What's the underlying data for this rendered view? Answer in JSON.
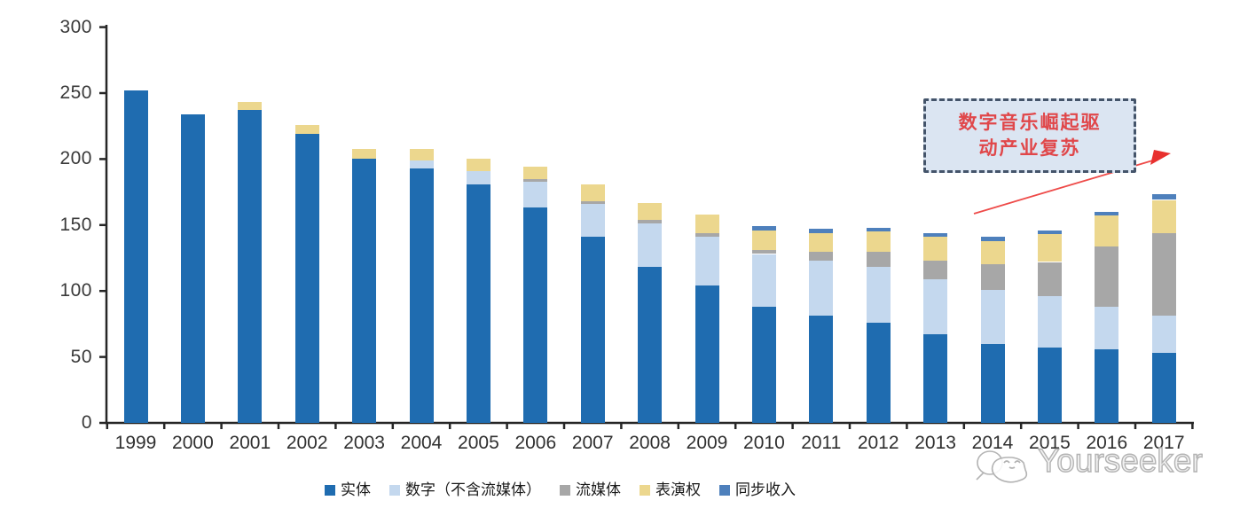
{
  "chart_data": {
    "type": "bar",
    "stacked": true,
    "title": "",
    "xlabel": "",
    "ylabel": "",
    "ylim": [
      0,
      300
    ],
    "y_ticks": [
      0,
      50,
      100,
      150,
      200,
      250,
      300
    ],
    "grid": false,
    "legend_position": "bottom",
    "categories": [
      "1999",
      "2000",
      "2001",
      "2002",
      "2003",
      "2004",
      "2005",
      "2006",
      "2007",
      "2008",
      "2009",
      "2010",
      "2011",
      "2012",
      "2013",
      "2014",
      "2015",
      "2016",
      "2017"
    ],
    "series": [
      {
        "key": "physical",
        "name": "实体",
        "color": "#1f6cb0",
        "values": [
          252,
          234,
          237,
          219,
          200,
          193,
          181,
          163,
          141,
          118,
          104,
          88,
          81,
          76,
          67,
          60,
          57,
          56,
          53
        ]
      },
      {
        "key": "digital-excl-streaming",
        "name": "数字（不含流媒体）",
        "color": "#c4d8ee",
        "values": [
          0,
          0,
          0,
          0,
          0,
          6,
          10,
          20,
          25,
          33,
          37,
          40,
          42,
          42,
          42,
          41,
          39,
          32,
          28
        ]
      },
      {
        "key": "streaming",
        "name": "流媒体",
        "color": "#a7a7a7",
        "values": [
          0,
          0,
          0,
          0,
          0,
          0,
          0,
          2,
          2,
          3,
          3,
          3,
          7,
          12,
          14,
          19,
          26,
          46,
          63
        ]
      },
      {
        "key": "performance-rights",
        "name": "表演权",
        "color": "#ecd78e",
        "values": [
          0,
          0,
          6,
          7,
          8,
          9,
          9,
          9,
          13,
          13,
          14,
          15,
          14,
          15,
          18,
          18,
          21,
          23,
          25
        ]
      },
      {
        "key": "sync",
        "name": "同步收入",
        "color": "#4e80bc",
        "values": [
          0,
          0,
          0,
          0,
          0,
          0,
          0,
          0,
          0,
          0,
          0,
          3,
          3,
          3,
          3,
          3,
          3,
          3,
          4
        ]
      }
    ]
  },
  "annotation": {
    "line1": "数字音乐崛起驱",
    "line2": "动产业复苏",
    "text_color": "#e0474a",
    "box_fill": "#dbe5f2",
    "border_color": "#44546a",
    "arrow_color": "#ee4a48"
  },
  "legend": {
    "items": [
      {
        "key": "physical",
        "label": "实体",
        "color": "#1f6cb0"
      },
      {
        "key": "digital-excl-streaming",
        "label": "数字（不含流媒体）",
        "color": "#c4d8ee"
      },
      {
        "key": "streaming",
        "label": "流媒体",
        "color": "#a7a7a7"
      },
      {
        "key": "performance-rights",
        "label": "表演权",
        "color": "#ecd78e"
      },
      {
        "key": "sync",
        "label": "同步收入",
        "color": "#4e80bc"
      }
    ]
  },
  "watermark": {
    "text": "Yourseeker",
    "logo": "chat-face-logo"
  },
  "colors": {
    "axis": "#262626",
    "tick_label": "#3a3a3a"
  }
}
